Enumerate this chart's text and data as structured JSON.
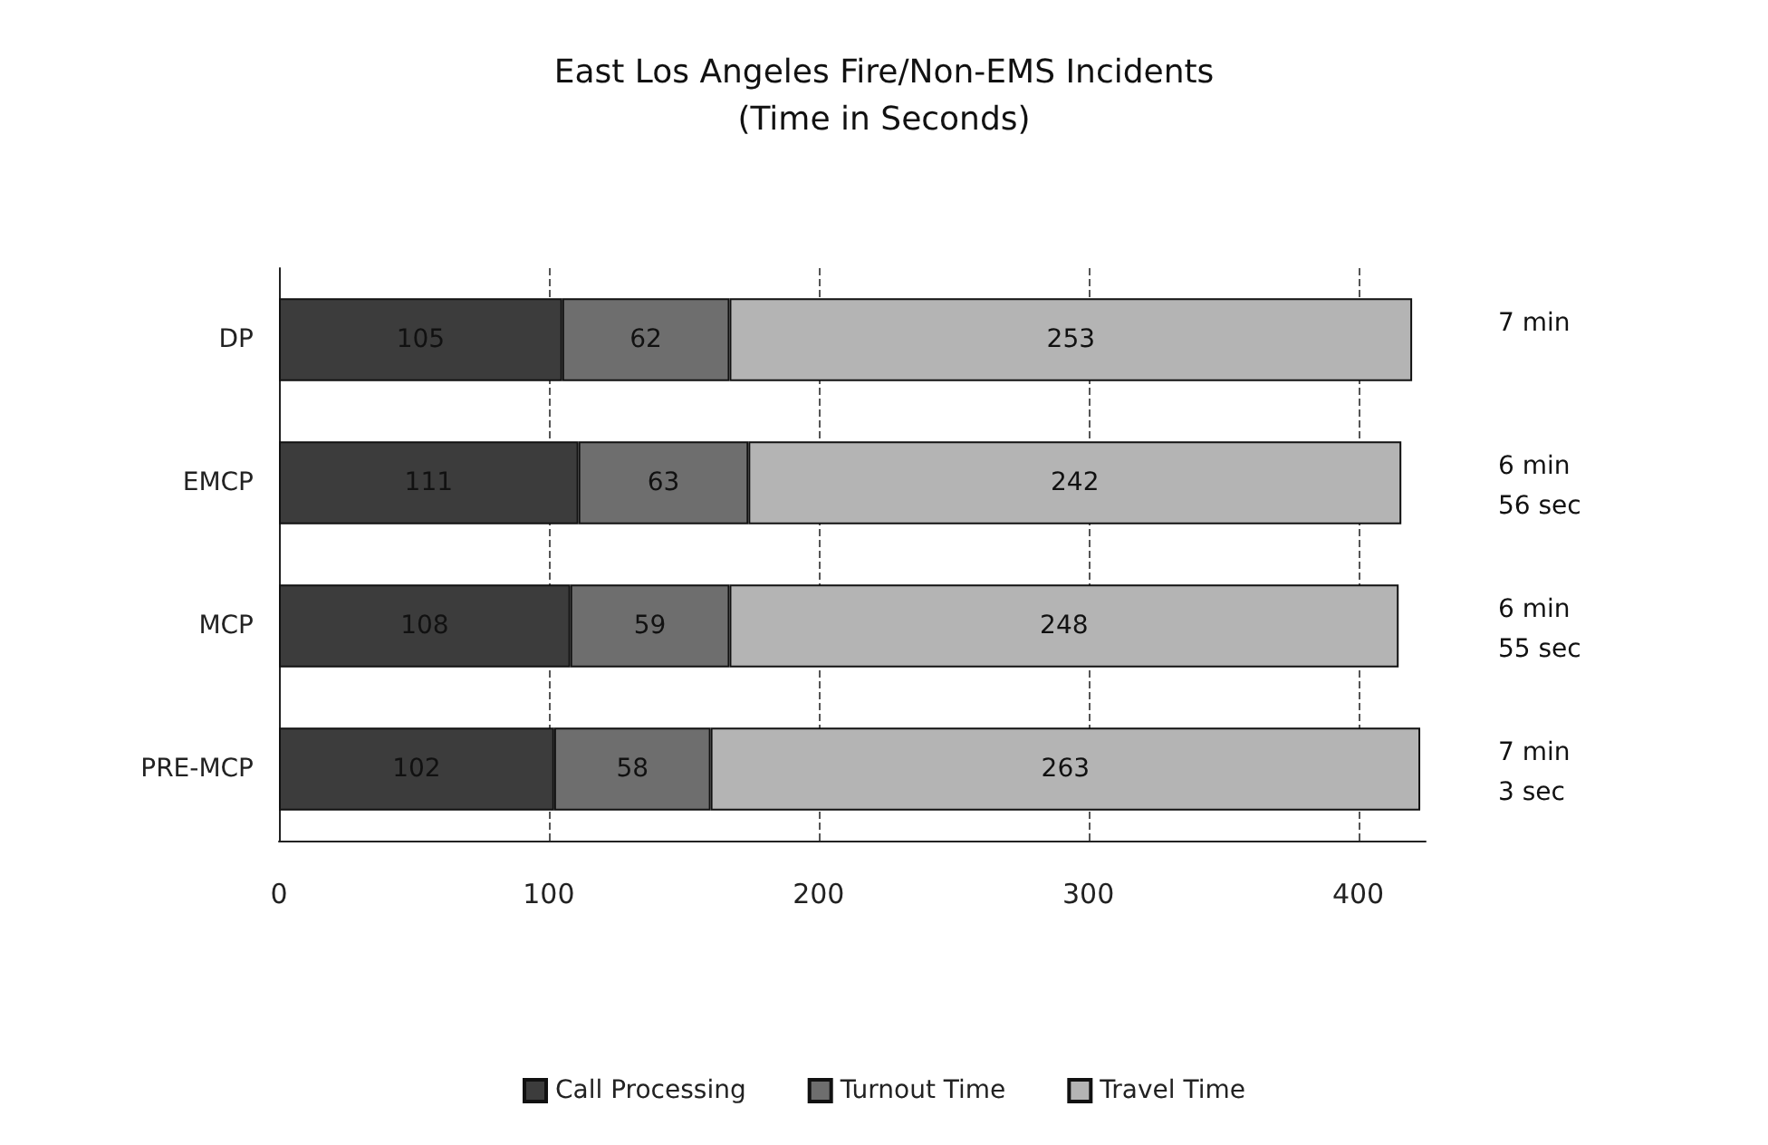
{
  "chart_data": {
    "type": "bar",
    "orientation": "horizontal",
    "stacked": true,
    "title": "East Los Angeles Fire/Non-EMS Incidents",
    "subtitle": "(Time in Seconds)",
    "categories": [
      "DP",
      "EMCP",
      "MCP",
      "PRE-MCP"
    ],
    "series": [
      {
        "name": "Call Processing",
        "color": "#3c3c3c",
        "values": [
          105,
          111,
          108,
          102
        ]
      },
      {
        "name": "Turnout Time",
        "color": "#6e6e6e",
        "values": [
          62,
          63,
          59,
          58
        ]
      },
      {
        "name": "Travel Time",
        "color": "#b4b4b4",
        "values": [
          253,
          242,
          248,
          263
        ]
      }
    ],
    "data_labels": true,
    "annotations": [
      "7 min",
      "6 min\n56 sec",
      "6 min\n55 sec",
      "7 min\n3 sec"
    ],
    "xlim": [
      0,
      425
    ],
    "xticks": [
      0,
      100,
      200,
      300,
      400
    ],
    "grid": "x",
    "legend": "bottom"
  }
}
